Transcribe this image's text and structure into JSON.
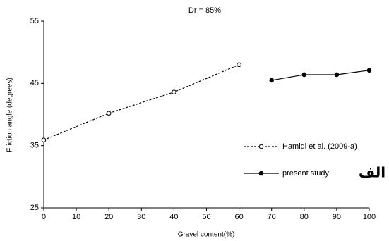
{
  "chart_data": {
    "type": "line",
    "title": "Dr = 85%",
    "x_label": "Gravel content(%)",
    "y_label": "Friction angle (degrees)",
    "xlim": [
      0,
      100
    ],
    "xticks": [
      0,
      10,
      20,
      30,
      40,
      50,
      60,
      70,
      80,
      90,
      100
    ],
    "ylim": [
      25,
      55
    ],
    "yticks": [
      25,
      35,
      45,
      55
    ],
    "grid": false,
    "legend": "right",
    "annotation": "الف",
    "series": [
      {
        "name": "Hamidi et al. (2009-a)",
        "color": "#000000",
        "line_style": "dotted",
        "marker": "open",
        "x": [
          0,
          20,
          40,
          60
        ],
        "values": [
          35.9,
          40.2,
          43.6,
          48.0
        ]
      },
      {
        "name": "present study",
        "color": "#000000",
        "line_style": "solid",
        "marker": "filled",
        "x": [
          70,
          80,
          90,
          100
        ],
        "values": [
          45.5,
          46.4,
          46.4,
          47.1
        ]
      }
    ]
  }
}
